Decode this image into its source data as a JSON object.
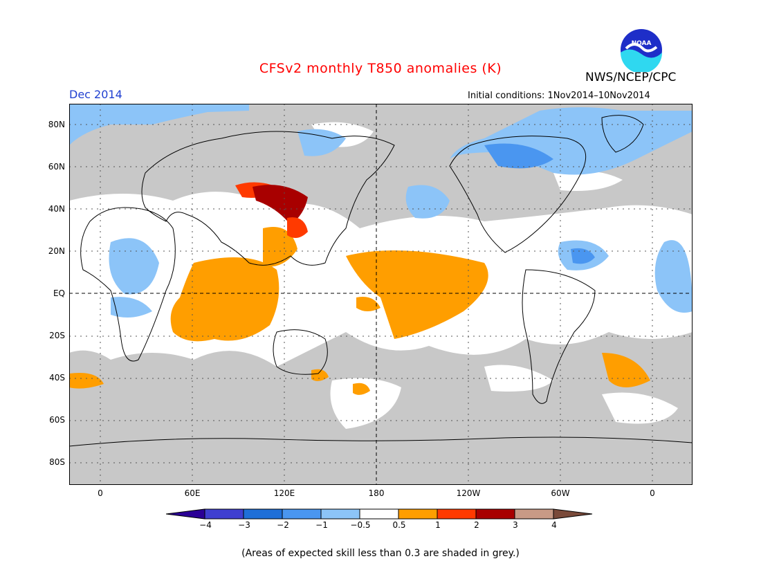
{
  "title": "CFSv2 monthly T850 anomalies (K)",
  "agency": "NWS/NCEP/CPC",
  "valid_month": "Dec 2014",
  "initial_conditions": "Initial conditions: 1Nov2014–10Nov2014",
  "logo_text": "NOAA",
  "footnote": "(Areas of expected skill less than 0.3 are shaded in grey.)",
  "axes": {
    "y_labels": [
      "80N",
      "60N",
      "40N",
      "20N",
      "EQ",
      "20S",
      "40S",
      "60S",
      "80S"
    ],
    "x_labels": [
      "0",
      "60E",
      "120E",
      "180",
      "120W",
      "60W",
      "0"
    ]
  },
  "colorbar": {
    "labels": [
      "−4",
      "−3",
      "−2",
      "−1",
      "−0.5",
      "0.5",
      "1",
      "2",
      "3",
      "4"
    ],
    "colors": [
      "#2b0096",
      "#3f3fd0",
      "#1f6fd8",
      "#4a96f0",
      "#8cc4f8",
      "#ffffff",
      "#ff9e00",
      "#ff3a00",
      "#a80000",
      "#c89a86",
      "#7a4a3a"
    ]
  },
  "colors": {
    "skill_grey": "#c8c8c8",
    "warm_orange": "#ff9e00",
    "warm_red": "#ff3a00",
    "warm_darkred": "#a80000",
    "cool_light": "#8cc4f8",
    "cool_mid": "#4a96f0"
  }
}
